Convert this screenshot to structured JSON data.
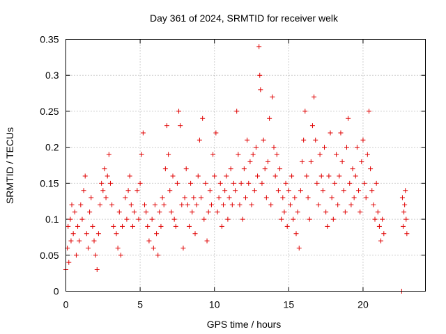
{
  "chart_data": {
    "type": "scatter",
    "title": "Day 361 of 2024, SRMTID for receiver welk",
    "xlabel": "GPS time / hours",
    "ylabel": "SRMTID / TECUs",
    "xlim": [
      0,
      24.2
    ],
    "ylim": [
      0,
      0.35
    ],
    "x_ticks": [
      0,
      5,
      10,
      15,
      20
    ],
    "x_tick_labels": [
      "0",
      "5",
      "10",
      "15",
      "20"
    ],
    "y_ticks": [
      0,
      0.05,
      0.1,
      0.15,
      0.2,
      0.25,
      0.3,
      0.35
    ],
    "y_tick_labels": [
      "0",
      "0.05",
      "0.1",
      "0.15",
      "0.2",
      "0.25",
      "0.3",
      "0.35"
    ],
    "grid": true,
    "marker": "+",
    "color": "#e00000",
    "series": [
      {
        "name": "SRMTID",
        "points": [
          [
            0.0,
            0.03
          ],
          [
            0.1,
            0.06
          ],
          [
            0.15,
            0.09
          ],
          [
            0.2,
            0.04
          ],
          [
            0.3,
            0.1
          ],
          [
            0.35,
            0.07
          ],
          [
            0.4,
            0.12
          ],
          [
            0.5,
            0.08
          ],
          [
            0.6,
            0.11
          ],
          [
            0.7,
            0.05
          ],
          [
            0.8,
            0.09
          ],
          [
            0.9,
            0.07
          ],
          [
            1.0,
            0.12
          ],
          [
            1.1,
            0.1
          ],
          [
            1.2,
            0.14
          ],
          [
            1.3,
            0.16
          ],
          [
            1.4,
            0.08
          ],
          [
            1.5,
            0.06
          ],
          [
            1.6,
            0.11
          ],
          [
            1.7,
            0.13
          ],
          [
            1.8,
            0.09
          ],
          [
            1.9,
            0.07
          ],
          [
            2.0,
            0.05
          ],
          [
            2.1,
            0.03
          ],
          [
            2.2,
            0.08
          ],
          [
            2.3,
            0.12
          ],
          [
            2.4,
            0.15
          ],
          [
            2.5,
            0.14
          ],
          [
            2.6,
            0.17
          ],
          [
            2.7,
            0.13
          ],
          [
            2.8,
            0.16
          ],
          [
            2.9,
            0.19
          ],
          [
            3.0,
            0.15
          ],
          [
            3.1,
            0.12
          ],
          [
            3.2,
            0.09
          ],
          [
            3.4,
            0.08
          ],
          [
            3.5,
            0.06
          ],
          [
            3.6,
            0.11
          ],
          [
            3.7,
            0.05
          ],
          [
            3.8,
            0.09
          ],
          [
            4.0,
            0.13
          ],
          [
            4.1,
            0.1
          ],
          [
            4.2,
            0.14
          ],
          [
            4.3,
            0.16
          ],
          [
            4.4,
            0.12
          ],
          [
            4.5,
            0.09
          ],
          [
            4.6,
            0.11
          ],
          [
            4.8,
            0.14
          ],
          [
            4.9,
            0.1
          ],
          [
            5.0,
            0.15
          ],
          [
            5.1,
            0.19
          ],
          [
            5.2,
            0.22
          ],
          [
            5.3,
            0.12
          ],
          [
            5.4,
            0.11
          ],
          [
            5.5,
            0.09
          ],
          [
            5.6,
            0.07
          ],
          [
            5.8,
            0.1
          ],
          [
            5.9,
            0.06
          ],
          [
            6.0,
            0.12
          ],
          [
            6.1,
            0.08
          ],
          [
            6.2,
            0.05
          ],
          [
            6.3,
            0.11
          ],
          [
            6.4,
            0.09
          ],
          [
            6.5,
            0.13
          ],
          [
            6.6,
            0.12
          ],
          [
            6.7,
            0.17
          ],
          [
            6.8,
            0.23
          ],
          [
            6.9,
            0.19
          ],
          [
            7.0,
            0.14
          ],
          [
            7.1,
            0.11
          ],
          [
            7.2,
            0.16
          ],
          [
            7.3,
            0.1
          ],
          [
            7.4,
            0.09
          ],
          [
            7.5,
            0.15
          ],
          [
            7.6,
            0.25
          ],
          [
            7.7,
            0.23
          ],
          [
            7.8,
            0.12
          ],
          [
            7.9,
            0.06
          ],
          [
            8.0,
            0.13
          ],
          [
            8.1,
            0.17
          ],
          [
            8.2,
            0.12
          ],
          [
            8.3,
            0.09
          ],
          [
            8.4,
            0.15
          ],
          [
            8.5,
            0.11
          ],
          [
            8.6,
            0.13
          ],
          [
            8.7,
            0.08
          ],
          [
            8.8,
            0.12
          ],
          [
            8.9,
            0.16
          ],
          [
            9.0,
            0.21
          ],
          [
            9.1,
            0.13
          ],
          [
            9.2,
            0.24
          ],
          [
            9.3,
            0.1
          ],
          [
            9.4,
            0.15
          ],
          [
            9.5,
            0.07
          ],
          [
            9.6,
            0.11
          ],
          [
            9.7,
            0.14
          ],
          [
            9.8,
            0.12
          ],
          [
            9.9,
            0.19
          ],
          [
            10.0,
            0.16
          ],
          [
            10.1,
            0.22
          ],
          [
            10.2,
            0.11
          ],
          [
            10.3,
            0.13
          ],
          [
            10.4,
            0.15
          ],
          [
            10.5,
            0.09
          ],
          [
            10.6,
            0.12
          ],
          [
            10.7,
            0.14
          ],
          [
            10.8,
            0.16
          ],
          [
            10.9,
            0.1
          ],
          [
            11.0,
            0.13
          ],
          [
            11.1,
            0.17
          ],
          [
            11.2,
            0.12
          ],
          [
            11.3,
            0.15
          ],
          [
            11.4,
            0.14
          ],
          [
            11.5,
            0.25
          ],
          [
            11.6,
            0.19
          ],
          [
            11.7,
            0.12
          ],
          [
            11.8,
            0.15
          ],
          [
            11.9,
            0.1
          ],
          [
            12.0,
            0.17
          ],
          [
            12.1,
            0.13
          ],
          [
            12.2,
            0.21
          ],
          [
            12.3,
            0.15
          ],
          [
            12.4,
            0.18
          ],
          [
            12.5,
            0.12
          ],
          [
            12.6,
            0.19
          ],
          [
            12.7,
            0.14
          ],
          [
            12.8,
            0.2
          ],
          [
            12.9,
            0.16
          ],
          [
            13.0,
            0.34
          ],
          [
            13.05,
            0.3
          ],
          [
            13.1,
            0.28
          ],
          [
            13.2,
            0.15
          ],
          [
            13.3,
            0.21
          ],
          [
            13.4,
            0.17
          ],
          [
            13.5,
            0.13
          ],
          [
            13.6,
            0.18
          ],
          [
            13.7,
            0.24
          ],
          [
            13.8,
            0.12
          ],
          [
            13.9,
            0.27
          ],
          [
            14.0,
            0.2
          ],
          [
            14.1,
            0.16
          ],
          [
            14.2,
            0.19
          ],
          [
            14.3,
            0.14
          ],
          [
            14.4,
            0.17
          ],
          [
            14.5,
            0.1
          ],
          [
            14.6,
            0.13
          ],
          [
            14.7,
            0.11
          ],
          [
            14.8,
            0.15
          ],
          [
            14.9,
            0.09
          ],
          [
            15.0,
            0.14
          ],
          [
            15.1,
            0.12
          ],
          [
            15.2,
            0.16
          ],
          [
            15.3,
            0.1
          ],
          [
            15.4,
            0.13
          ],
          [
            15.5,
            0.08
          ],
          [
            15.6,
            0.11
          ],
          [
            15.7,
            0.06
          ],
          [
            15.8,
            0.14
          ],
          [
            15.9,
            0.18
          ],
          [
            16.0,
            0.21
          ],
          [
            16.1,
            0.25
          ],
          [
            16.2,
            0.16
          ],
          [
            16.3,
            0.13
          ],
          [
            16.4,
            0.1
          ],
          [
            16.5,
            0.18
          ],
          [
            16.6,
            0.23
          ],
          [
            16.7,
            0.27
          ],
          [
            16.8,
            0.21
          ],
          [
            16.9,
            0.15
          ],
          [
            17.0,
            0.12
          ],
          [
            17.1,
            0.19
          ],
          [
            17.2,
            0.16
          ],
          [
            17.3,
            0.14
          ],
          [
            17.4,
            0.2
          ],
          [
            17.5,
            0.11
          ],
          [
            17.6,
            0.09
          ],
          [
            17.7,
            0.16
          ],
          [
            17.8,
            0.22
          ],
          [
            17.9,
            0.13
          ],
          [
            18.0,
            0.1
          ],
          [
            18.1,
            0.15
          ],
          [
            18.2,
            0.19
          ],
          [
            18.3,
            0.12
          ],
          [
            18.4,
            0.16
          ],
          [
            18.5,
            0.22
          ],
          [
            18.6,
            0.18
          ],
          [
            18.7,
            0.14
          ],
          [
            18.8,
            0.11
          ],
          [
            18.9,
            0.2
          ],
          [
            19.0,
            0.24
          ],
          [
            19.1,
            0.15
          ],
          [
            19.2,
            0.12
          ],
          [
            19.3,
            0.17
          ],
          [
            19.4,
            0.13
          ],
          [
            19.5,
            0.16
          ],
          [
            19.6,
            0.2
          ],
          [
            19.7,
            0.14
          ],
          [
            19.8,
            0.11
          ],
          [
            19.9,
            0.18
          ],
          [
            20.0,
            0.21
          ],
          [
            20.1,
            0.15
          ],
          [
            20.2,
            0.13
          ],
          [
            20.3,
            0.19
          ],
          [
            20.4,
            0.25
          ],
          [
            20.5,
            0.17
          ],
          [
            20.6,
            0.14
          ],
          [
            20.7,
            0.12
          ],
          [
            20.8,
            0.1
          ],
          [
            20.9,
            0.15
          ],
          [
            21.0,
            0.11
          ],
          [
            21.1,
            0.09
          ],
          [
            21.2,
            0.07
          ],
          [
            21.3,
            0.1
          ],
          [
            21.4,
            0.08
          ],
          [
            22.6,
            0.0
          ],
          [
            22.7,
            0.09
          ],
          [
            22.8,
            0.12
          ],
          [
            22.85,
            0.14
          ],
          [
            22.9,
            0.1
          ],
          [
            22.95,
            0.08
          ],
          [
            22.75,
            0.11
          ],
          [
            22.65,
            0.13
          ]
        ]
      }
    ]
  }
}
